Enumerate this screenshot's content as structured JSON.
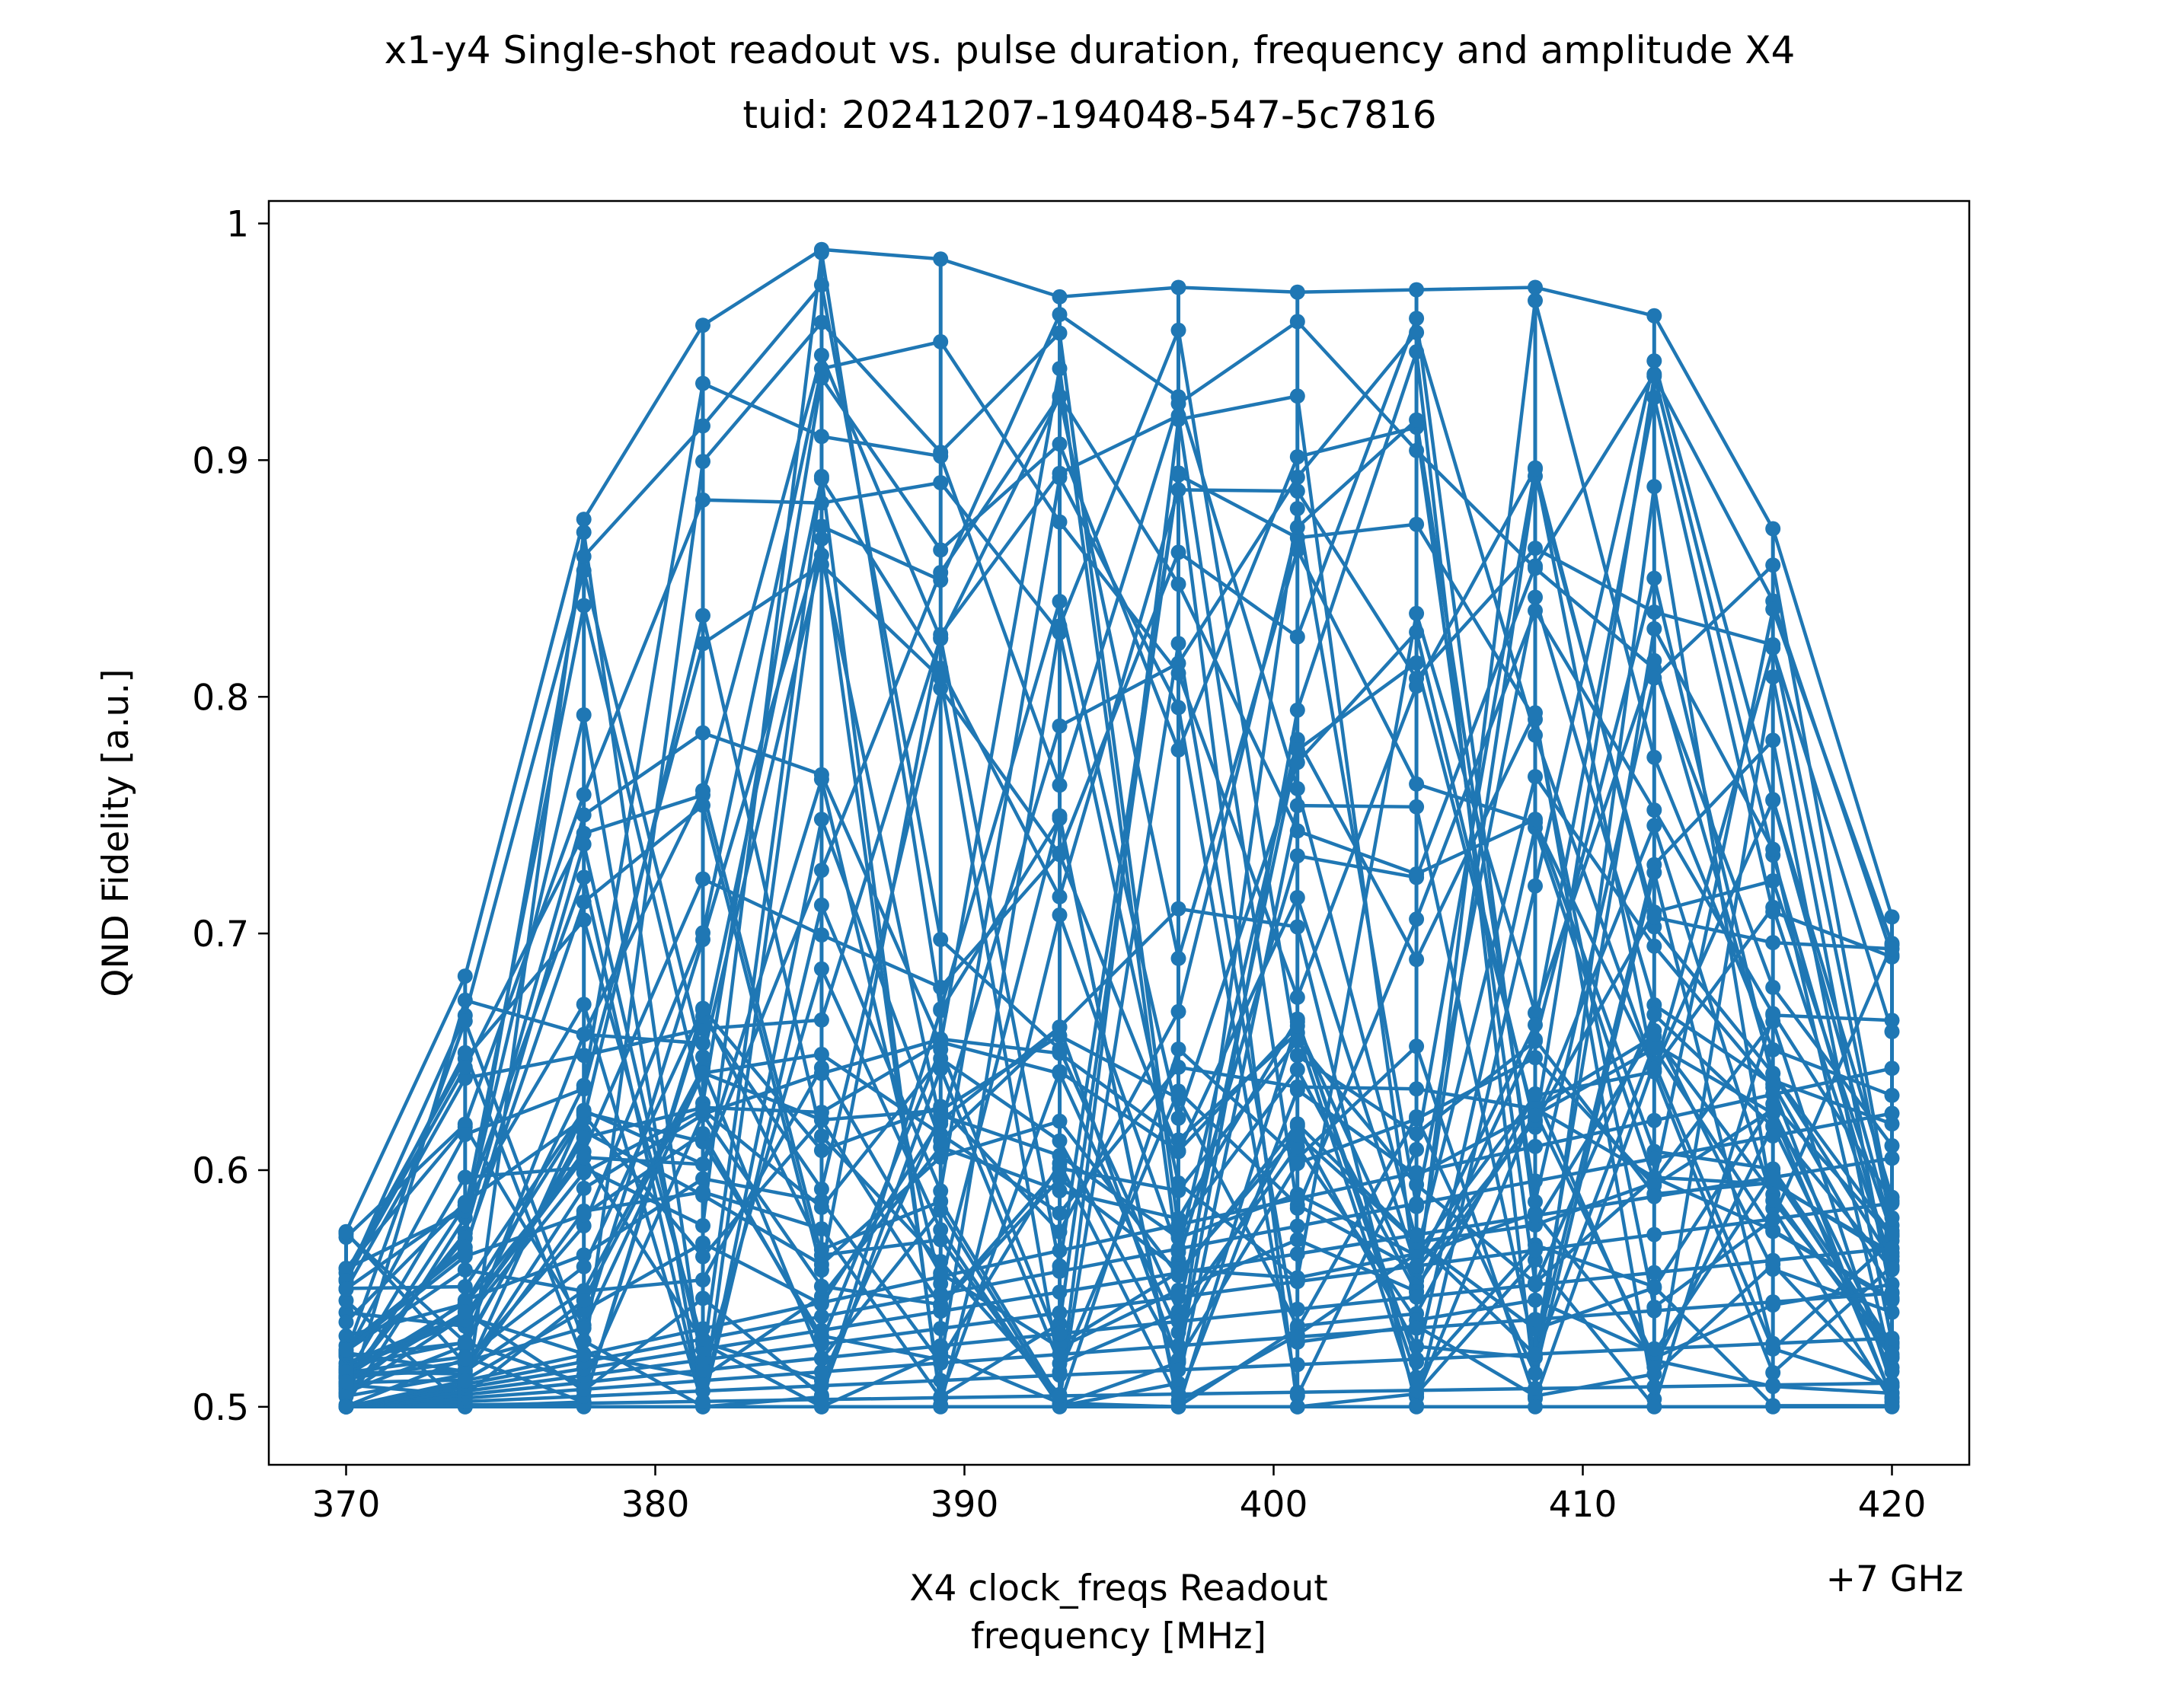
{
  "figure": {
    "title_line1": "x1-y4 Single-shot readout vs. pulse duration, frequency and amplitude X4",
    "title_line2": "tuid: 20241207-194048-547-5c7816"
  },
  "chart_data": {
    "type": "line",
    "title": "x1-y4 Single-shot readout vs. pulse duration, frequency and amplitude X4\ntuid: 20241207-194048-547-5c7816",
    "xlabel_line1": "X4 clock_freqs Readout",
    "xlabel_line2": "frequency [MHz]",
    "x_offset_label": "+7 GHz",
    "ylabel": "QND Fidelity [a.u.]",
    "xlim": [
      367.5,
      422.5
    ],
    "ylim": [
      0.4755,
      1.0095
    ],
    "xticks": [
      370,
      380,
      390,
      400,
      410,
      420
    ],
    "xtick_labels": [
      "370",
      "380",
      "390",
      "400",
      "410",
      "420"
    ],
    "yticks": [
      0.5,
      0.6,
      0.7,
      0.8,
      0.9,
      1.0
    ],
    "ytick_labels": [
      "0.5",
      "0.6",
      "0.7",
      "0.8",
      "0.9",
      "1"
    ],
    "grid": false,
    "line_color": "#1f77b4",
    "marker": "circle",
    "x_frequencies": [
      370.0,
      373.85,
      377.69,
      381.54,
      385.38,
      389.23,
      393.08,
      396.92,
      400.77,
      404.62,
      408.46,
      412.31,
      416.15,
      420.0
    ],
    "series_max": [
      0.574,
      0.682,
      0.875,
      0.957,
      0.989,
      0.985,
      0.969,
      0.973,
      0.971,
      0.972,
      0.973,
      0.961,
      0.871,
      0.707
    ],
    "series_min": [
      0.5,
      0.5,
      0.5,
      0.5,
      0.5,
      0.5,
      0.5,
      0.5,
      0.5,
      0.5,
      0.5,
      0.5,
      0.5,
      0.5
    ],
    "sweep_count": 48
  }
}
